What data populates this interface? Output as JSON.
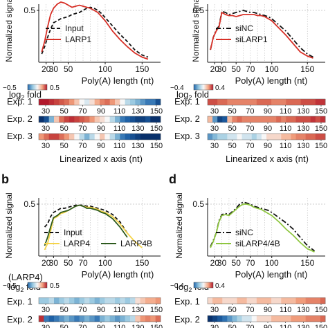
{
  "panels": {
    "b": {
      "label": "b"
    },
    "d": {
      "label": "d"
    }
  },
  "axis_titles": {
    "top_left_x": "Poly(A) length (nt)",
    "top_right_x": "Poly(A) length (nt)",
    "bottom_left_x": "Poly(A) length (nt)",
    "bottom_right_x": "Poly(A) length (nt)",
    "top_left_y": "Normalized signal",
    "top_right_y": "Normalized signal",
    "bottom_left_y": "Normalized signal",
    "bottom_right_y": "Normalized signal",
    "linearized_x": "Linearized x axis (nt)"
  },
  "heatmap_labels": {
    "log2fold": "log2 fold",
    "larp4_note": "(LARP4)",
    "exp1": "Exp. 1",
    "exp2": "Exp. 2",
    "exp3": "Exp. 3"
  },
  "colorbars": {
    "top_left": {
      "min": "−0.5",
      "max": "0.5"
    },
    "top_right": {
      "min": "−0.4",
      "max": "0.4"
    },
    "bottom_left": {
      "min": "−0.5",
      "max": "0.5"
    },
    "bottom_right": {
      "min": "−0.4",
      "max": "0.4"
    }
  },
  "colors": {
    "red": "#d73027",
    "blue": "#2166ac",
    "navy": "#08306b",
    "yellow": "#f5d44a",
    "darkgreen": "#2d5a1e",
    "lightgreen": "#8ec63f",
    "black": "#111111"
  },
  "chart_data": [
    {
      "id": "top-left",
      "type": "line",
      "xlabel": "Poly(A) length (nt)",
      "ylabel": "Normalized signal",
      "xlim": [
        10,
        175
      ],
      "ylim": [
        0,
        0.56
      ],
      "xticks": [
        20,
        30,
        50,
        100,
        150
      ],
      "yticks": [
        0.5
      ],
      "series": [
        {
          "name": "Input",
          "style": "dashed",
          "color": "#111111",
          "x": [
            14,
            18,
            22,
            26,
            30,
            35,
            40,
            45,
            50,
            55,
            60,
            65,
            70,
            75,
            80,
            85,
            90,
            95,
            100,
            110,
            120,
            130,
            140,
            150,
            158
          ],
          "y": [
            0.08,
            0.15,
            0.24,
            0.32,
            0.38,
            0.4,
            0.42,
            0.43,
            0.44,
            0.46,
            0.47,
            0.48,
            0.5,
            0.52,
            0.53,
            0.52,
            0.5,
            0.47,
            0.43,
            0.35,
            0.27,
            0.2,
            0.12,
            0.07,
            0.05
          ]
        },
        {
          "name": "LARP1",
          "style": "solid",
          "color": "#d73027",
          "x": [
            14,
            18,
            22,
            26,
            30,
            35,
            40,
            45,
            50,
            55,
            60,
            65,
            70,
            75,
            80,
            85,
            90,
            95,
            100,
            110,
            120,
            130,
            140,
            150,
            158
          ],
          "y": [
            0.1,
            0.2,
            0.34,
            0.46,
            0.52,
            0.56,
            0.58,
            0.57,
            0.55,
            0.53,
            0.54,
            0.55,
            0.54,
            0.53,
            0.52,
            0.5,
            0.48,
            0.44,
            0.4,
            0.3,
            0.22,
            0.15,
            0.09,
            0.05,
            0.03
          ]
        }
      ]
    },
    {
      "id": "top-right",
      "type": "line",
      "xlabel": "Poly(A) length (nt)",
      "ylabel": "Normalized signal",
      "xlim": [
        10,
        175
      ],
      "ylim": [
        0,
        0.56
      ],
      "xticks": [
        20,
        30,
        50,
        70,
        100,
        150
      ],
      "yticks": [
        0.5
      ],
      "series": [
        {
          "name": "siNC",
          "style": "dashdot",
          "color": "#111111",
          "x": [
            14,
            18,
            22,
            26,
            30,
            35,
            40,
            45,
            50,
            55,
            60,
            65,
            70,
            75,
            80,
            85,
            90,
            95,
            100,
            110,
            120,
            130,
            140,
            150,
            158
          ],
          "y": [
            0.12,
            0.24,
            0.31,
            0.35,
            0.49,
            0.48,
            0.46,
            0.47,
            0.48,
            0.49,
            0.5,
            0.49,
            0.48,
            0.48,
            0.47,
            0.46,
            0.45,
            0.44,
            0.42,
            0.36,
            0.3,
            0.22,
            0.14,
            0.08,
            0.05
          ]
        },
        {
          "name": "siLARP1",
          "style": "solid",
          "color": "#d73027",
          "x": [
            14,
            18,
            22,
            26,
            30,
            35,
            40,
            45,
            50,
            55,
            60,
            65,
            70,
            75,
            80,
            85,
            90,
            95,
            100,
            110,
            120,
            130,
            140,
            150,
            158
          ],
          "y": [
            0.12,
            0.24,
            0.3,
            0.34,
            0.48,
            0.46,
            0.45,
            0.45,
            0.44,
            0.45,
            0.46,
            0.46,
            0.46,
            0.46,
            0.45,
            0.45,
            0.44,
            0.42,
            0.4,
            0.33,
            0.26,
            0.18,
            0.1,
            0.06,
            0.04
          ]
        }
      ]
    },
    {
      "id": "bottom-left",
      "type": "line",
      "xlabel": "Poly(A) length (nt)",
      "ylabel": "Normalized signal",
      "xlim": [
        10,
        175
      ],
      "ylim": [
        0,
        0.56
      ],
      "xticks": [
        20,
        30,
        50,
        70,
        100,
        150
      ],
      "yticks": [
        0.5
      ],
      "series": [
        {
          "name": "Input",
          "style": "dashed",
          "color": "#111111",
          "x": [
            18,
            22,
            26,
            30,
            35,
            40,
            45,
            50,
            55,
            60,
            65,
            70,
            75,
            80,
            85,
            90,
            95,
            100,
            110,
            120,
            130
          ],
          "y": [
            0.28,
            0.31,
            0.38,
            0.42,
            0.44,
            0.46,
            0.46,
            0.47,
            0.48,
            0.49,
            0.49,
            0.49,
            0.48,
            0.48,
            0.47,
            0.46,
            0.45,
            0.44,
            0.4,
            0.33,
            0.22
          ]
        },
        {
          "name": "LARP4",
          "style": "solid",
          "color": "#f5d44a",
          "x": [
            18,
            22,
            26,
            30,
            35,
            40,
            45,
            50,
            55,
            60,
            65,
            70,
            75,
            80,
            85,
            90,
            95,
            100,
            110,
            120,
            130,
            140,
            150
          ],
          "y": [
            0.06,
            0.12,
            0.24,
            0.36,
            0.38,
            0.41,
            0.42,
            0.44,
            0.46,
            0.48,
            0.49,
            0.48,
            0.47,
            0.47,
            0.46,
            0.45,
            0.43,
            0.42,
            0.38,
            0.31,
            0.22,
            0.14,
            0.08
          ]
        },
        {
          "name": "LARP4B",
          "style": "solid",
          "color": "#2d5a1e",
          "x": [
            18,
            22,
            26,
            30,
            35,
            40,
            45,
            50,
            55,
            60,
            65,
            70,
            75,
            80,
            85,
            90,
            95,
            100,
            110,
            120,
            130
          ],
          "y": [
            0.1,
            0.18,
            0.28,
            0.37,
            0.39,
            0.42,
            0.43,
            0.44,
            0.46,
            0.48,
            0.49,
            0.48,
            0.46,
            0.46,
            0.45,
            0.44,
            0.42,
            0.41,
            0.36,
            0.28,
            0.18
          ]
        }
      ]
    },
    {
      "id": "bottom-right",
      "type": "line",
      "xlabel": "Poly(A) length (nt)",
      "ylabel": "Normalized signal",
      "xlim": [
        10,
        175
      ],
      "ylim": [
        0,
        0.56
      ],
      "xticks": [
        20,
        30,
        50,
        70,
        100,
        150
      ],
      "yticks": [
        0.5
      ],
      "series": [
        {
          "name": "siNC",
          "style": "dashdot",
          "color": "#111111",
          "x": [
            14,
            18,
            22,
            26,
            30,
            35,
            40,
            45,
            50,
            55,
            60,
            65,
            70,
            75,
            80,
            85,
            90,
            95,
            100,
            110,
            120,
            130,
            140,
            150,
            160
          ],
          "y": [
            0.09,
            0.15,
            0.22,
            0.34,
            0.4,
            0.41,
            0.4,
            0.43,
            0.46,
            0.5,
            0.52,
            0.51,
            0.5,
            0.48,
            0.47,
            0.46,
            0.45,
            0.44,
            0.42,
            0.37,
            0.32,
            0.26,
            0.18,
            0.1,
            0.05
          ]
        },
        {
          "name": "siLARP4/4B",
          "style": "solid",
          "color": "#8ec63f",
          "x": [
            14,
            18,
            22,
            26,
            30,
            35,
            40,
            45,
            50,
            55,
            60,
            65,
            70,
            75,
            80,
            85,
            90,
            95,
            100,
            110,
            120,
            130,
            140,
            150,
            160
          ],
          "y": [
            0.08,
            0.14,
            0.22,
            0.33,
            0.39,
            0.4,
            0.39,
            0.42,
            0.45,
            0.48,
            0.5,
            0.5,
            0.49,
            0.47,
            0.46,
            0.45,
            0.43,
            0.41,
            0.39,
            0.33,
            0.26,
            0.2,
            0.13,
            0.07,
            0.04
          ]
        }
      ]
    },
    {
      "id": "heatmap-top-left",
      "type": "heatmap",
      "ticks": [
        "30",
        "50",
        "70",
        "90",
        "110",
        "130",
        "150"
      ],
      "rows": [
        {
          "label": "Exp. 1",
          "values": [
            0.5,
            0.5,
            0.45,
            0.4,
            0.35,
            0.3,
            0.2,
            0.1,
            0.0,
            -0.05,
            0.05,
            0.15,
            0.25,
            0.3,
            0.2,
            0.1,
            0.0,
            -0.1,
            -0.15,
            -0.2,
            -0.25,
            -0.3,
            -0.3,
            -0.4
          ]
        },
        {
          "label": "Exp. 2",
          "values": [
            -0.5,
            -0.4,
            -0.2,
            0.1,
            0.3,
            0.4,
            0.45,
            0.4,
            0.35,
            0.3,
            0.2,
            0.1,
            0.05,
            0.0,
            -0.1,
            -0.2,
            -0.3,
            -0.35,
            -0.4,
            -0.45,
            -0.45,
            -0.4,
            -0.5,
            -0.5
          ]
        },
        {
          "label": "Exp. 3",
          "values": [
            0.2,
            0.3,
            0.4,
            0.4,
            0.3,
            0.2,
            0.1,
            0.0,
            -0.1,
            -0.2,
            -0.1,
            0.0,
            0.1,
            0.0,
            -0.1,
            -0.2,
            -0.3,
            -0.35,
            -0.4,
            -0.45,
            -0.5,
            -0.5,
            -0.5,
            -0.5
          ]
        }
      ]
    },
    {
      "id": "heatmap-top-right",
      "type": "heatmap",
      "ticks": [
        "30",
        "50",
        "70",
        "90",
        "110",
        "130",
        "150"
      ],
      "rows": [
        {
          "label": "Exp. 1",
          "values": [
            0.3,
            0.3,
            0.25,
            0.25,
            0.2,
            0.2,
            0.2,
            0.2,
            0.2,
            0.2,
            0.25,
            0.25,
            0.25,
            0.2,
            0.2,
            0.2,
            0.25,
            0.25,
            0.25,
            0.3,
            0.3,
            0.3,
            0.35,
            0.35
          ]
        },
        {
          "label": "Exp. 2",
          "values": [
            0.1,
            -0.2,
            -0.35,
            -0.3,
            0.1,
            0.2,
            0.25,
            0.2,
            0.2,
            0.2,
            0.2,
            0.2,
            0.2,
            0.2,
            0.25,
            0.2,
            0.25,
            0.25,
            0.3,
            0.3,
            0.3,
            0.35,
            0.3,
            0.35
          ]
        },
        {
          "label": "Exp. 3",
          "values": [
            -0.2,
            -0.15,
            -0.1,
            -0.1,
            -0.05,
            -0.05,
            0.0,
            -0.05,
            -0.05,
            -0.1,
            -0.05,
            0.0,
            0.05,
            0.05,
            0.05,
            0.1,
            0.1,
            0.15,
            0.2,
            0.2,
            0.25,
            0.25,
            0.3,
            0.3
          ]
        }
      ]
    },
    {
      "id": "heatmap-bottom-left",
      "type": "heatmap",
      "ticks": [
        "30",
        "50",
        "70",
        "90",
        "110",
        "130",
        "150"
      ],
      "rows": [
        {
          "label": "Exp. 1",
          "values": [
            -0.15,
            -0.15,
            -0.1,
            -0.2,
            -0.15,
            -0.1,
            -0.15,
            -0.2,
            -0.15,
            -0.1,
            -0.15,
            -0.2,
            -0.15,
            -0.1,
            -0.1,
            -0.15,
            -0.1,
            -0.15,
            -0.1,
            0.05,
            0.1,
            0.15,
            0.15,
            0.2
          ]
        },
        {
          "label": "Exp. 2",
          "values": [
            0.45,
            -0.3,
            -0.35,
            -0.3,
            -0.25,
            -0.2,
            -0.25,
            -0.3,
            -0.25,
            -0.2,
            -0.25,
            -0.3,
            -0.2,
            -0.15,
            -0.2,
            -0.25,
            -0.2,
            -0.15,
            -0.1,
            0.1,
            0.2,
            0.25,
            0.2,
            0.3
          ]
        }
      ]
    },
    {
      "id": "heatmap-bottom-right",
      "type": "heatmap",
      "ticks": [
        "30",
        "50",
        "70",
        "90",
        "110",
        "130",
        "150"
      ],
      "rows": [
        {
          "label": "Exp. 1",
          "values": [
            0.05,
            0.1,
            0.1,
            0.05,
            0.05,
            0.05,
            0.1,
            0.1,
            0.05,
            0.05,
            0.1,
            0.1,
            0.1,
            0.05,
            0.05,
            0.1,
            0.1,
            0.1,
            0.15,
            0.15,
            0.2,
            0.2,
            0.2,
            0.25
          ]
        },
        {
          "label": "Exp. 2",
          "values": [
            -0.4,
            -0.35,
            -0.3,
            -0.25,
            -0.2,
            -0.15,
            -0.1,
            -0.05,
            -0.05,
            0.0,
            0.05,
            0.05,
            0.05,
            0.1,
            0.1,
            0.1,
            0.1,
            0.15,
            0.15,
            0.15,
            0.2,
            0.2,
            0.2,
            0.25
          ]
        }
      ]
    }
  ]
}
